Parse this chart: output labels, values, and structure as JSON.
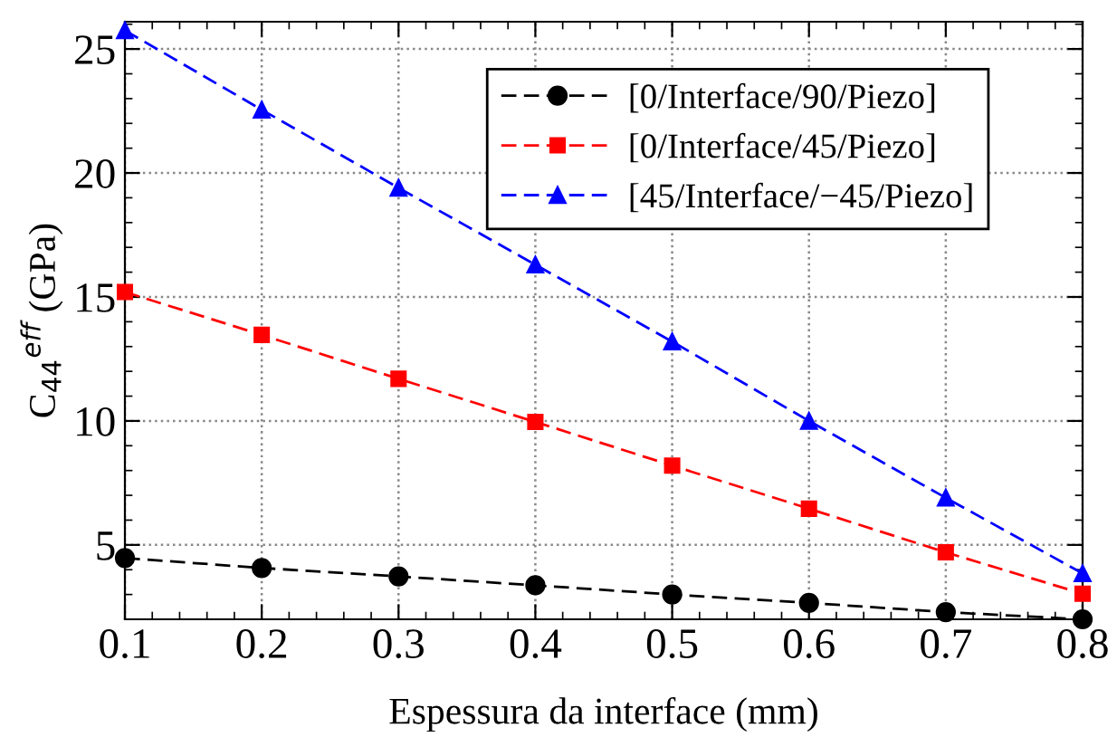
{
  "chart_data": {
    "type": "line",
    "xlabel": "Espessura da interface (mm)",
    "ylabel": "C$_{44}$$^{eff}$ (GPa)",
    "x": [
      0.1,
      0.2,
      0.3,
      0.4,
      0.5,
      0.6,
      0.7,
      0.8
    ],
    "series": [
      {
        "name": "[0/Interface/90/Piezo]",
        "color": "#000000",
        "marker": "circle",
        "values": [
          4.47,
          4.07,
          3.73,
          3.37,
          3.0,
          2.66,
          2.29,
          2.0
        ]
      },
      {
        "name": "[0/Interface/45/Piezo]",
        "color": "#ff0000",
        "marker": "square",
        "values": [
          15.2,
          13.47,
          11.7,
          9.96,
          8.2,
          6.46,
          4.7,
          3.03
        ]
      },
      {
        "name": "[45/Interface/−45/Piezo]",
        "color": "#0000ff",
        "marker": "triangle",
        "values": [
          25.75,
          22.55,
          19.4,
          16.3,
          13.2,
          10.0,
          6.9,
          3.85
        ]
      }
    ],
    "line_style": "dashed",
    "grid": true,
    "legend": "top right",
    "xlim": [
      0.1,
      0.8
    ],
    "xticks": [
      0.1,
      0.2,
      0.3,
      0.4,
      0.5,
      0.6,
      0.7,
      0.8
    ],
    "ylim": [
      2,
      26.1
    ],
    "yticks": [
      5,
      10,
      15,
      20,
      25
    ]
  }
}
